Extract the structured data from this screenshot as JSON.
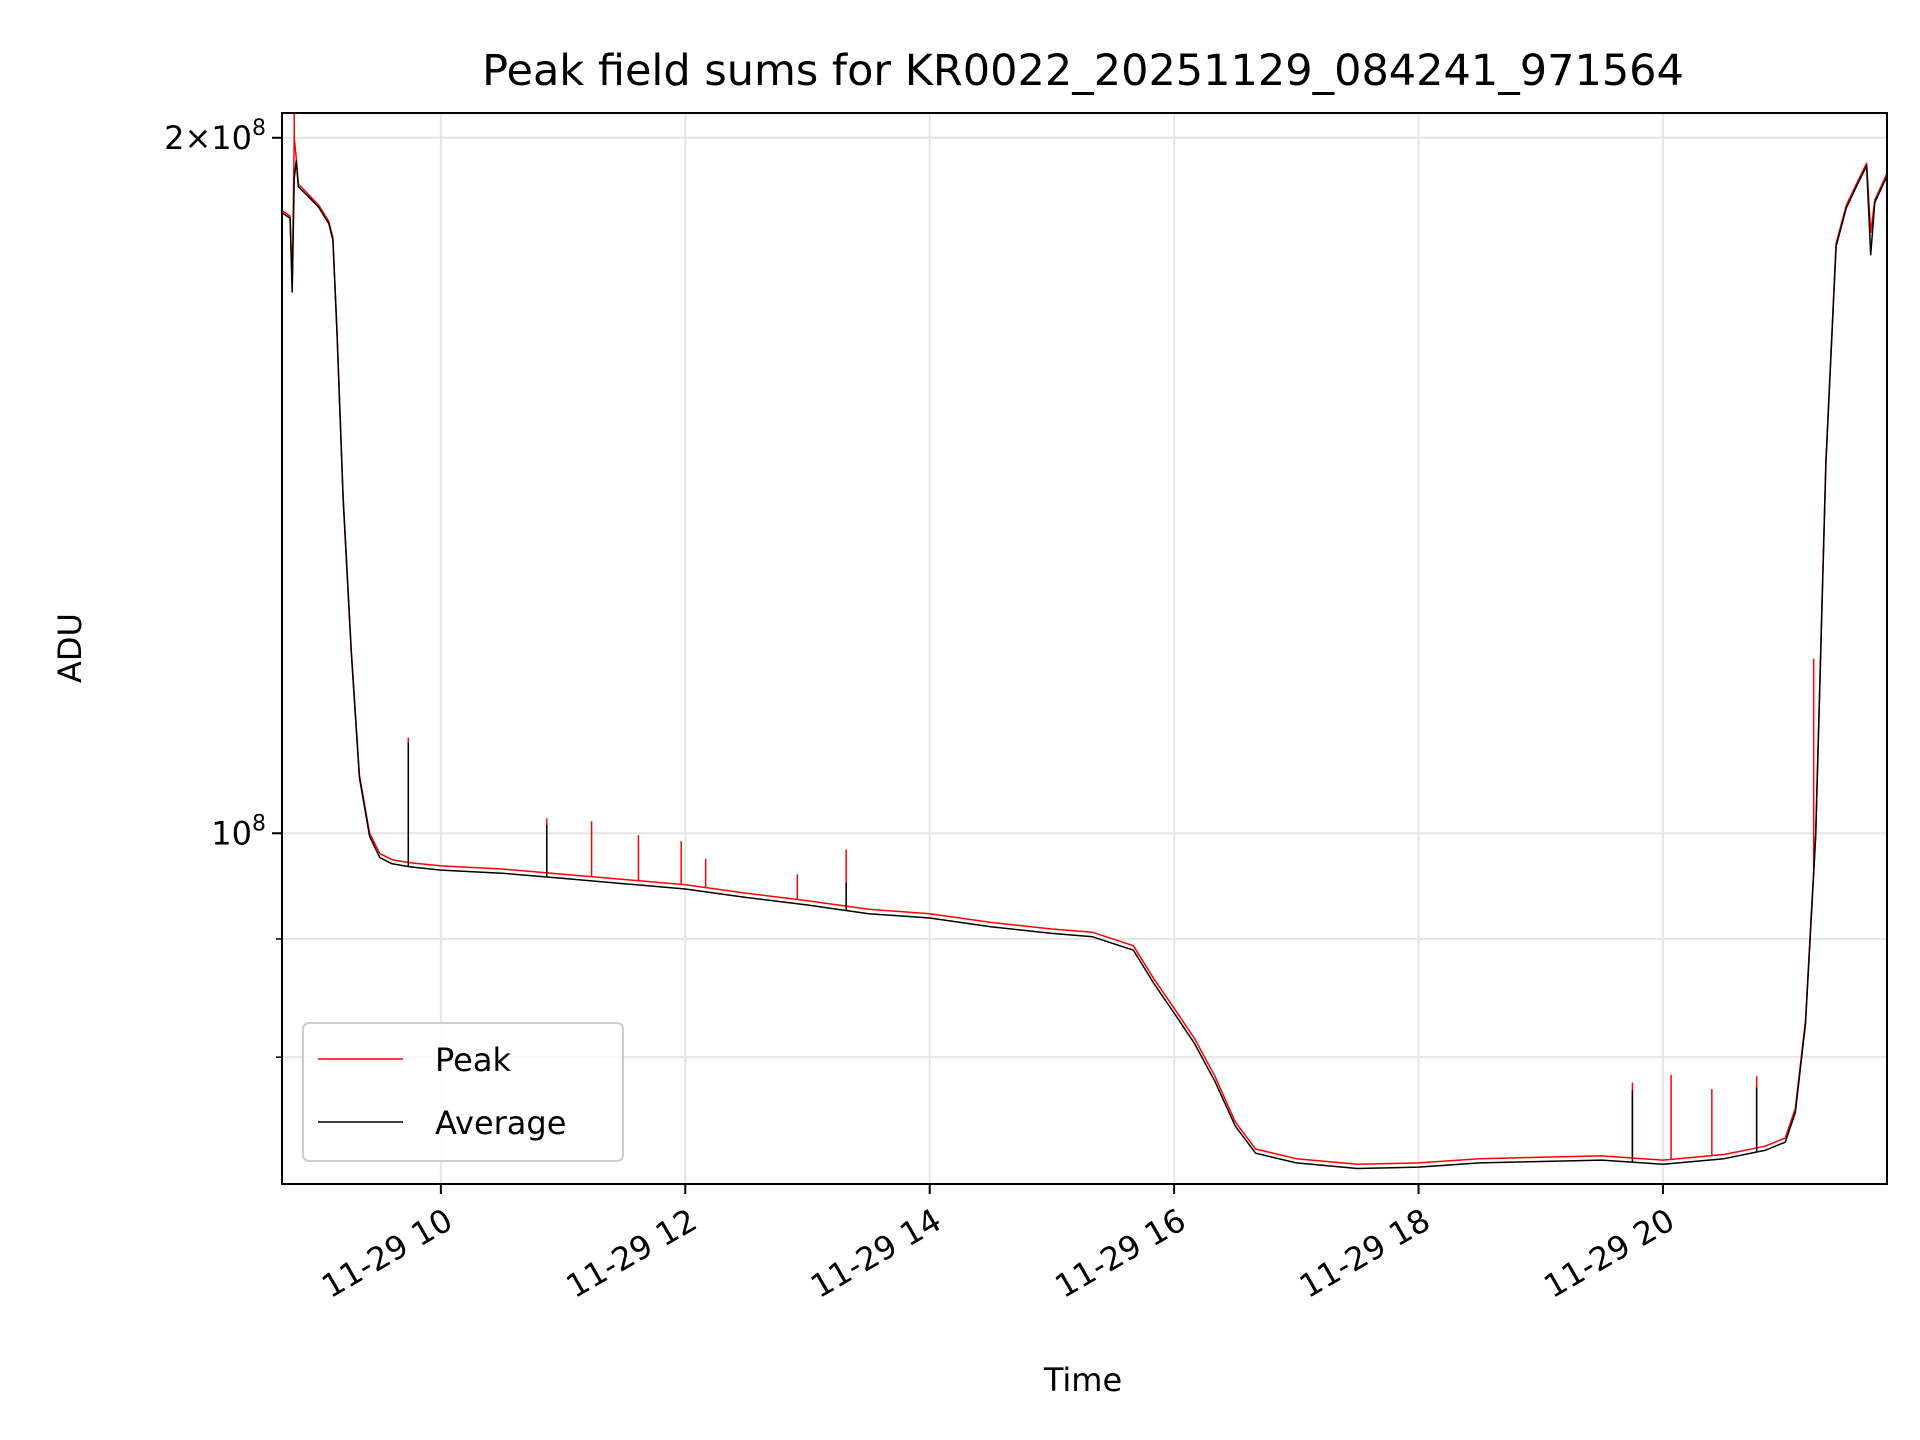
{
  "chart_data": {
    "type": "line",
    "title": "Peak field sums for KR0022_20251129_084241_971564",
    "xlabel": "Time",
    "ylabel": "ADU",
    "yscale": "log",
    "xlim": [
      "2025-11-29 08:42",
      "2025-11-29 21:50"
    ],
    "ylim": [
      70500000,
      205000000
    ],
    "grid": true,
    "legend_position": "lower-left",
    "x_ticks": [
      {
        "time": "2025-11-29 10:00",
        "label": "11-29 10"
      },
      {
        "time": "2025-11-29 12:00",
        "label": "11-29 12"
      },
      {
        "time": "2025-11-29 14:00",
        "label": "11-29 14"
      },
      {
        "time": "2025-11-29 16:00",
        "label": "11-29 16"
      },
      {
        "time": "2025-11-29 18:00",
        "label": "11-29 18"
      },
      {
        "time": "2025-11-29 20:00",
        "label": "11-29 20"
      }
    ],
    "y_major_ticks": [
      {
        "value": 100000000,
        "mantissa": "",
        "times": "",
        "base": "10",
        "exp": "8"
      },
      {
        "value": 200000000,
        "mantissa": "2",
        "times": "×",
        "base": "10",
        "exp": "8"
      }
    ],
    "y_minor_gridlines": [
      80000000,
      90000000
    ],
    "series": [
      {
        "name": "Peak",
        "color": "#ff0000",
        "points": [
          [
            "2025-11-29 08:42",
            186000000
          ],
          [
            "2025-11-29 08:46",
            185000000
          ],
          [
            "2025-11-29 08:47",
            172000000
          ],
          [
            "2025-11-29 08:48",
            200000000
          ],
          [
            "2025-11-29 08:49",
            196000000
          ],
          [
            "2025-11-29 08:50",
            191000000
          ],
          [
            "2025-11-29 08:55",
            189000000
          ],
          [
            "2025-11-29 09:00",
            187000000
          ],
          [
            "2025-11-29 09:05",
            184000000
          ],
          [
            "2025-11-29 09:07",
            181000000
          ],
          [
            "2025-11-29 09:09",
            165000000
          ],
          [
            "2025-11-29 09:12",
            140000000
          ],
          [
            "2025-11-29 09:16",
            120000000
          ],
          [
            "2025-11-29 09:20",
            106000000
          ],
          [
            "2025-11-29 09:25",
            100000000
          ],
          [
            "2025-11-29 09:30",
            98000000
          ],
          [
            "2025-11-29 09:36",
            97400000
          ],
          [
            "2025-11-29 09:45",
            97100000
          ],
          [
            "2025-11-29 10:00",
            96800000
          ],
          [
            "2025-11-29 10:30",
            96500000
          ],
          [
            "2025-11-29 11:00",
            96000000
          ],
          [
            "2025-11-29 11:30",
            95500000
          ],
          [
            "2025-11-29 12:00",
            95000000
          ],
          [
            "2025-11-29 12:30",
            94200000
          ],
          [
            "2025-11-29 13:00",
            93500000
          ],
          [
            "2025-11-29 13:30",
            92700000
          ],
          [
            "2025-11-29 14:00",
            92300000
          ],
          [
            "2025-11-29 14:30",
            91500000
          ],
          [
            "2025-11-29 15:00",
            90900000
          ],
          [
            "2025-11-29 15:20",
            90600000
          ],
          [
            "2025-11-29 15:40",
            89400000
          ],
          [
            "2025-11-29 15:50",
            86500000
          ],
          [
            "2025-11-29 16:00",
            84000000
          ],
          [
            "2025-11-29 16:10",
            81500000
          ],
          [
            "2025-11-29 16:20",
            78500000
          ],
          [
            "2025-11-29 16:30",
            75000000
          ],
          [
            "2025-11-29 16:40",
            73000000
          ],
          [
            "2025-11-29 17:00",
            72300000
          ],
          [
            "2025-11-29 17:30",
            71900000
          ],
          [
            "2025-11-29 18:00",
            72000000
          ],
          [
            "2025-11-29 18:30",
            72300000
          ],
          [
            "2025-11-29 19:00",
            72400000
          ],
          [
            "2025-11-29 19:30",
            72500000
          ],
          [
            "2025-11-29 20:00",
            72200000
          ],
          [
            "2025-11-29 20:30",
            72600000
          ],
          [
            "2025-11-29 20:50",
            73200000
          ],
          [
            "2025-11-29 21:00",
            73800000
          ],
          [
            "2025-11-29 21:05",
            76000000
          ],
          [
            "2025-11-29 21:10",
            83000000
          ],
          [
            "2025-11-29 21:15",
            100000000
          ],
          [
            "2025-11-29 21:20",
            145000000
          ],
          [
            "2025-11-29 21:25",
            180000000
          ],
          [
            "2025-11-29 21:30",
            187000000
          ],
          [
            "2025-11-29 21:35",
            191000000
          ],
          [
            "2025-11-29 21:40",
            195000000
          ],
          [
            "2025-11-29 21:42",
            182000000
          ],
          [
            "2025-11-29 21:44",
            188000000
          ],
          [
            "2025-11-29 21:50",
            193000000
          ]
        ],
        "spikes": [
          [
            "2025-11-29 08:48",
            205000000
          ],
          [
            "2025-11-29 09:44",
            110000000
          ],
          [
            "2025-11-29 10:52",
            101500000
          ],
          [
            "2025-11-29 11:14",
            101200000
          ],
          [
            "2025-11-29 11:37",
            99800000
          ],
          [
            "2025-11-29 11:58",
            99200000
          ],
          [
            "2025-11-29 12:10",
            97500000
          ],
          [
            "2025-11-29 12:55",
            96000000
          ],
          [
            "2025-11-29 13:19",
            98400000
          ],
          [
            "2025-11-29 19:45",
            78000000
          ],
          [
            "2025-11-29 20:04",
            78600000
          ],
          [
            "2025-11-29 20:24",
            77500000
          ],
          [
            "2025-11-29 20:46",
            78500000
          ],
          [
            "2025-11-29 21:14",
            119000000
          ]
        ]
      },
      {
        "name": "Average",
        "color": "#000000",
        "points": [
          [
            "2025-11-29 08:42",
            185600000
          ],
          [
            "2025-11-29 08:46",
            184600000
          ],
          [
            "2025-11-29 08:47",
            171500000
          ],
          [
            "2025-11-29 08:48",
            192000000
          ],
          [
            "2025-11-29 08:49",
            195500000
          ],
          [
            "2025-11-29 08:50",
            190500000
          ],
          [
            "2025-11-29 08:55",
            188600000
          ],
          [
            "2025-11-29 09:00",
            186600000
          ],
          [
            "2025-11-29 09:05",
            183600000
          ],
          [
            "2025-11-29 09:07",
            180600000
          ],
          [
            "2025-11-29 09:09",
            164600000
          ],
          [
            "2025-11-29 09:12",
            139600000
          ],
          [
            "2025-11-29 09:16",
            119700000
          ],
          [
            "2025-11-29 09:20",
            105700000
          ],
          [
            "2025-11-29 09:25",
            99700000
          ],
          [
            "2025-11-29 09:30",
            97600000
          ],
          [
            "2025-11-29 09:36",
            97000000
          ],
          [
            "2025-11-29 09:45",
            96700000
          ],
          [
            "2025-11-29 10:00",
            96400000
          ],
          [
            "2025-11-29 10:30",
            96100000
          ],
          [
            "2025-11-29 11:00",
            95600000
          ],
          [
            "2025-11-29 11:30",
            95100000
          ],
          [
            "2025-11-29 12:00",
            94600000
          ],
          [
            "2025-11-29 12:30",
            93800000
          ],
          [
            "2025-11-29 13:00",
            93100000
          ],
          [
            "2025-11-29 13:30",
            92300000
          ],
          [
            "2025-11-29 14:00",
            91900000
          ],
          [
            "2025-11-29 14:30",
            91100000
          ],
          [
            "2025-11-29 15:00",
            90500000
          ],
          [
            "2025-11-29 15:20",
            90200000
          ],
          [
            "2025-11-29 15:40",
            89000000
          ],
          [
            "2025-11-29 15:50",
            86100000
          ],
          [
            "2025-11-29 16:00",
            83600000
          ],
          [
            "2025-11-29 16:10",
            81100000
          ],
          [
            "2025-11-29 16:20",
            78100000
          ],
          [
            "2025-11-29 16:30",
            74700000
          ],
          [
            "2025-11-29 16:40",
            72700000
          ],
          [
            "2025-11-29 17:00",
            72000000
          ],
          [
            "2025-11-29 17:30",
            71600000
          ],
          [
            "2025-11-29 18:00",
            71700000
          ],
          [
            "2025-11-29 18:30",
            72000000
          ],
          [
            "2025-11-29 19:00",
            72100000
          ],
          [
            "2025-11-29 19:30",
            72200000
          ],
          [
            "2025-11-29 20:00",
            71900000
          ],
          [
            "2025-11-29 20:30",
            72300000
          ],
          [
            "2025-11-29 20:50",
            72900000
          ],
          [
            "2025-11-29 21:00",
            73500000
          ],
          [
            "2025-11-29 21:05",
            75700000
          ],
          [
            "2025-11-29 21:10",
            82700000
          ],
          [
            "2025-11-29 21:15",
            99700000
          ],
          [
            "2025-11-29 21:20",
            144500000
          ],
          [
            "2025-11-29 21:25",
            179500000
          ],
          [
            "2025-11-29 21:30",
            186500000
          ],
          [
            "2025-11-29 21:35",
            190500000
          ],
          [
            "2025-11-29 21:40",
            194500000
          ],
          [
            "2025-11-29 21:42",
            178000000
          ],
          [
            "2025-11-29 21:44",
            187500000
          ],
          [
            "2025-11-29 21:50",
            192500000
          ]
        ],
        "spikes": [
          [
            "2025-11-29 09:44",
            109500000
          ],
          [
            "2025-11-29 10:52",
            100800000
          ],
          [
            "2025-11-29 13:19",
            95200000
          ],
          [
            "2025-11-29 19:45",
            77400000
          ],
          [
            "2025-11-29 20:46",
            77600000
          ]
        ]
      }
    ]
  }
}
